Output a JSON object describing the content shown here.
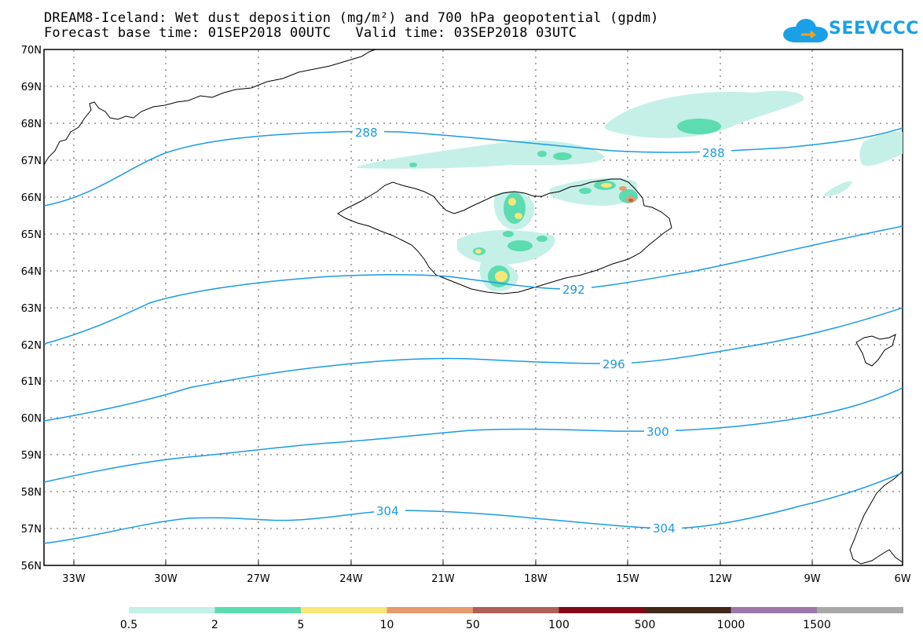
{
  "header": {
    "title_line1": "DREAM8-Iceland: Wet dust deposition (mg/m²) and 700 hPa geopotential (gpdm)",
    "title_line2": "Forecast base time: 01SEP2018 00UTC   Valid time: 03SEP2018 03UTC",
    "logo_text": "SEEVCCC"
  },
  "map": {
    "lat_labels": [
      "70N",
      "69N",
      "68N",
      "67N",
      "66N",
      "65N",
      "64N",
      "63N",
      "62N",
      "61N",
      "60N",
      "59N",
      "58N",
      "57N",
      "56N"
    ],
    "lon_labels": [
      "33W",
      "30W",
      "27W",
      "24W",
      "21W",
      "18W",
      "15W",
      "12W",
      "9W",
      "6W"
    ],
    "contour_labels": [
      "288",
      "288",
      "292",
      "296",
      "300",
      "304",
      "304"
    ],
    "contour_color": "#1a9ae6"
  },
  "legend": {
    "labels": [
      "0.5",
      "2",
      "5",
      "10",
      "50",
      "100",
      "500",
      "1000",
      "1500"
    ],
    "colors": [
      "#c4f0e8",
      "#5cdcb0",
      "#f8e678",
      "#e89a6c",
      "#b06058",
      "#800818",
      "#402818",
      "#9c78a8",
      "#a8a8a8"
    ]
  }
}
